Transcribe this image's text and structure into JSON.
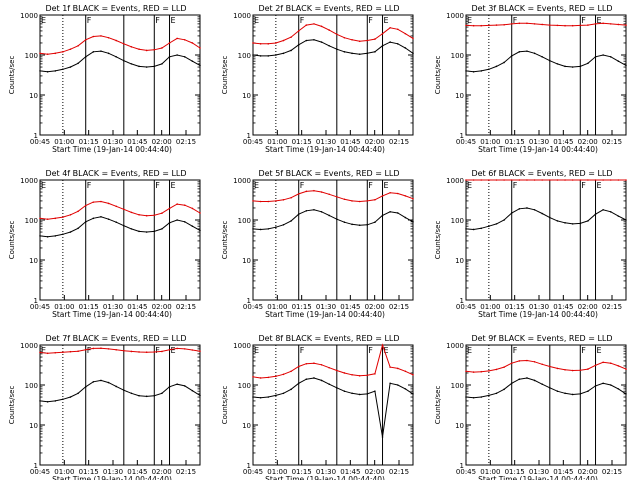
{
  "chart_data": [
    {
      "type": "line",
      "title": "Det 1f BLACK = Events, RED = LLD",
      "xlabel": "Start Time (19-Jan-14 00:44:40)",
      "ylabel": "Counts/sec",
      "xticks": [
        "00:45",
        "01:00",
        "01:15",
        "01:30",
        "01:45",
        "02:00",
        "02:15"
      ],
      "yticks": [
        "1",
        "10",
        "100",
        "1000"
      ],
      "yscale": "log",
      "ylim": [
        1,
        1000
      ],
      "series": [
        {
          "color": "#000000",
          "values": [
            40,
            38,
            40,
            44,
            50,
            62,
            90,
            120,
            125,
            110,
            90,
            72,
            60,
            52,
            50,
            52,
            60,
            90,
            100,
            90,
            70,
            55
          ]
        },
        {
          "color": "#e00000",
          "values": [
            110,
            105,
            110,
            120,
            140,
            170,
            240,
            290,
            300,
            270,
            230,
            190,
            160,
            140,
            130,
            135,
            150,
            200,
            260,
            240,
            200,
            150
          ]
        }
      ]
    },
    {
      "type": "line",
      "title": "Det 2f BLACK = Events, RED = LLD",
      "xlabel": "Start Time (19-Jan-14 00:44:40)",
      "ylabel": "Counts/sec",
      "xticks": [
        "00:45",
        "01:00",
        "01:15",
        "01:30",
        "01:45",
        "02:00",
        "02:15"
      ],
      "yticks": [
        "1",
        "10",
        "100",
        "1000"
      ],
      "yscale": "log",
      "ylim": [
        1,
        1000
      ],
      "series": [
        {
          "color": "#000000",
          "values": [
            100,
            95,
            95,
            100,
            110,
            130,
            180,
            230,
            240,
            210,
            170,
            140,
            120,
            110,
            105,
            110,
            120,
            170,
            210,
            190,
            150,
            110
          ]
        },
        {
          "color": "#e00000",
          "values": [
            200,
            190,
            190,
            200,
            230,
            280,
            400,
            560,
            600,
            520,
            420,
            330,
            270,
            240,
            220,
            230,
            250,
            340,
            480,
            440,
            340,
            260
          ]
        }
      ]
    },
    {
      "type": "line",
      "title": "Det 3f BLACK = Events, RED = LLD",
      "xlabel": "Start Time (19-Jan-14 00:44:40)",
      "ylabel": "Counts/sec",
      "xticks": [
        "00:45",
        "01:00",
        "01:15",
        "01:30",
        "01:45",
        "02:00",
        "02:15"
      ],
      "yticks": [
        "1",
        "10",
        "100",
        "1000"
      ],
      "yscale": "log",
      "ylim": [
        1,
        1000
      ],
      "series": [
        {
          "color": "#000000",
          "values": [
            40,
            38,
            40,
            44,
            52,
            65,
            95,
            120,
            125,
            110,
            90,
            72,
            60,
            52,
            50,
            52,
            62,
            90,
            100,
            90,
            70,
            55
          ]
        },
        {
          "color": "#e00000",
          "values": [
            550,
            540,
            540,
            550,
            560,
            570,
            600,
            620,
            620,
            600,
            580,
            560,
            550,
            540,
            540,
            550,
            560,
            600,
            620,
            600,
            580,
            560
          ]
        }
      ]
    },
    {
      "type": "line",
      "title": "Det 4f BLACK = Events, RED = LLD",
      "xlabel": "Start Time (19-Jan-14 00:44:40)",
      "ylabel": "Counts/sec",
      "xticks": [
        "00:45",
        "01:00",
        "01:15",
        "01:30",
        "01:45",
        "02:00",
        "02:15"
      ],
      "yticks": [
        "1",
        "10",
        "100",
        "1000"
      ],
      "yscale": "log",
      "ylim": [
        1,
        1000
      ],
      "series": [
        {
          "color": "#000000",
          "values": [
            40,
            38,
            40,
            44,
            50,
            62,
            90,
            110,
            120,
            105,
            88,
            72,
            60,
            52,
            50,
            52,
            60,
            85,
            100,
            90,
            70,
            55
          ]
        },
        {
          "color": "#e00000",
          "values": [
            110,
            105,
            110,
            118,
            135,
            165,
            230,
            280,
            290,
            260,
            220,
            185,
            155,
            135,
            128,
            132,
            148,
            195,
            250,
            235,
            195,
            150
          ]
        }
      ]
    },
    {
      "type": "line",
      "title": "Det 5f BLACK = Events, RED = LLD",
      "xlabel": "Start Time (19-Jan-14 00:44:40)",
      "ylabel": "Counts/sec",
      "xticks": [
        "00:45",
        "01:00",
        "01:15",
        "01:30",
        "01:45",
        "02:00",
        "02:15"
      ],
      "yticks": [
        "1",
        "10",
        "100",
        "1000"
      ],
      "yscale": "log",
      "ylim": [
        1,
        1000
      ],
      "series": [
        {
          "color": "#000000",
          "values": [
            60,
            58,
            60,
            66,
            76,
            95,
            140,
            170,
            180,
            160,
            130,
            105,
            88,
            78,
            74,
            76,
            88,
            130,
            160,
            150,
            115,
            90
          ]
        },
        {
          "color": "#e00000",
          "values": [
            300,
            290,
            290,
            300,
            320,
            360,
            450,
            520,
            540,
            500,
            440,
            380,
            330,
            300,
            290,
            300,
            320,
            400,
            480,
            460,
            400,
            340
          ]
        }
      ]
    },
    {
      "type": "line",
      "title": "Det 6f BLACK = Events, RED = LLD",
      "xlabel": "Start Time (19-Jan-14 00:44:40)",
      "ylabel": "Counts/sec",
      "xticks": [
        "00:45",
        "01:00",
        "01:15",
        "01:30",
        "01:45",
        "02:00",
        "02:15"
      ],
      "yticks": [
        "1",
        "10",
        "100",
        "1000"
      ],
      "yscale": "log",
      "ylim": [
        1,
        1000
      ],
      "series": [
        {
          "color": "#000000",
          "values": [
            60,
            58,
            62,
            70,
            80,
            100,
            150,
            190,
            200,
            180,
            145,
            115,
            95,
            85,
            80,
            82,
            95,
            140,
            180,
            160,
            125,
            100
          ]
        },
        {
          "color": "#e00000",
          "values": [
            1000,
            1000,
            1000,
            1000,
            1000,
            1000,
            1000,
            1000,
            1000,
            1000,
            1000,
            1000,
            1000,
            1000,
            1000,
            1000,
            1000,
            1000,
            1000,
            1000,
            1000,
            1000
          ]
        }
      ]
    },
    {
      "type": "line",
      "title": "Det 7f BLACK = Events, RED = LLD",
      "xlabel": "Start Time (19-Jan-14 00:44:40)",
      "ylabel": "Counts/sec",
      "xticks": [
        "00:45",
        "01:00",
        "01:15",
        "01:30",
        "01:45",
        "02:00",
        "02:15"
      ],
      "yticks": [
        "1",
        "10",
        "100",
        "1000"
      ],
      "yscale": "log",
      "ylim": [
        1,
        1000
      ],
      "series": [
        {
          "color": "#000000",
          "values": [
            40,
            38,
            40,
            44,
            50,
            62,
            90,
            120,
            130,
            115,
            92,
            74,
            62,
            54,
            52,
            54,
            62,
            90,
            105,
            95,
            72,
            55
          ]
        },
        {
          "color": "#e00000",
          "values": [
            650,
            620,
            640,
            660,
            680,
            700,
            760,
            820,
            830,
            800,
            760,
            720,
            690,
            670,
            660,
            670,
            690,
            760,
            820,
            800,
            750,
            700
          ]
        }
      ]
    },
    {
      "type": "line",
      "title": "Det 8f BLACK = Events, RED = LLD",
      "xlabel": "Start Time (19-Jan-14 00:44:40)",
      "ylabel": "Counts/sec",
      "xticks": [
        "00:45",
        "01:00",
        "01:15",
        "01:30",
        "01:45",
        "02:00",
        "02:15"
      ],
      "yticks": [
        "1",
        "10",
        "100",
        "1000"
      ],
      "yscale": "log",
      "ylim": [
        1,
        1000
      ],
      "series": [
        {
          "color": "#000000",
          "values": [
            50,
            48,
            50,
            55,
            62,
            78,
            110,
            140,
            150,
            130,
            105,
            85,
            70,
            62,
            58,
            60,
            70,
            5,
            110,
            100,
            80,
            60
          ]
        },
        {
          "color": "#e00000",
          "values": [
            160,
            150,
            155,
            165,
            185,
            220,
            290,
            340,
            350,
            320,
            270,
            230,
            200,
            180,
            170,
            175,
            190,
            1000,
            280,
            260,
            220,
            180
          ]
        }
      ]
    },
    {
      "type": "line",
      "title": "Det 9f BLACK = Events, RED = LLD",
      "xlabel": "Start Time (19-Jan-14 00:44:40)",
      "ylabel": "Counts/sec",
      "xticks": [
        "00:45",
        "01:00",
        "01:15",
        "01:30",
        "01:45",
        "02:00",
        "02:15"
      ],
      "yticks": [
        "1",
        "10",
        "100",
        "1000"
      ],
      "yscale": "log",
      "ylim": [
        1,
        1000
      ],
      "series": [
        {
          "color": "#000000",
          "values": [
            50,
            48,
            50,
            55,
            62,
            78,
            110,
            140,
            150,
            130,
            105,
            85,
            70,
            62,
            58,
            60,
            70,
            95,
            110,
            100,
            80,
            60
          ]
        },
        {
          "color": "#e00000",
          "values": [
            220,
            210,
            215,
            225,
            245,
            280,
            350,
            400,
            410,
            380,
            330,
            290,
            260,
            240,
            230,
            235,
            250,
            310,
            370,
            350,
            300,
            250
          ]
        }
      ]
    }
  ],
  "markers": {
    "lines": [
      {
        "x_index": 3,
        "style": "dotted"
      },
      {
        "x_index": 6,
        "style": "solid"
      },
      {
        "x_index": 11,
        "style": "solid"
      },
      {
        "x_index": 15,
        "style": "solid"
      },
      {
        "x_index": 17,
        "style": "solid"
      }
    ],
    "labels": [
      {
        "x_index": 0,
        "text": "E"
      },
      {
        "x_index": 6,
        "text": "F"
      },
      {
        "x_index": 15,
        "text": "F"
      },
      {
        "x_index": 17,
        "text": "E"
      }
    ]
  }
}
